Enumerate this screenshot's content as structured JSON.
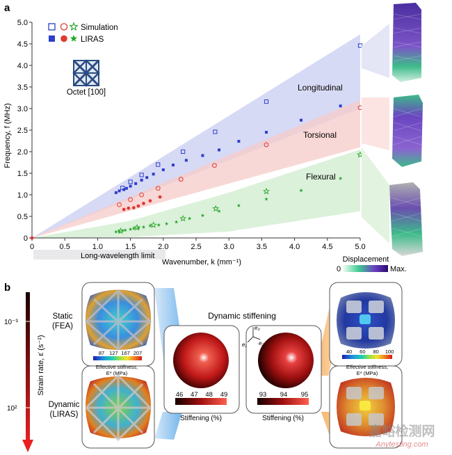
{
  "panel_a": {
    "letter": "a",
    "legend": {
      "sim_label": "Simulation",
      "liras_label": "LIRAS"
    },
    "unit_cell_label": "Octet [100]",
    "mode_labels": [
      "Longitudinal",
      "Torsional",
      "Flexural"
    ],
    "long_wavelength_label": "Long-wavelength limit",
    "displacement": {
      "title": "Displacement",
      "min": "0",
      "max": "Max."
    }
  },
  "chart_data": {
    "type": "scatter",
    "xlabel": "Wavenumber, k (mm⁻¹)",
    "ylabel": "Frequency, f (MHz)",
    "xlim": [
      0,
      5
    ],
    "ylim": [
      0,
      5
    ],
    "xticks": [
      "0",
      "0.5",
      "1.0",
      "1.5",
      "2.0",
      "2.5",
      "3.0",
      "3.5",
      "4.0",
      "4.5",
      "5.0"
    ],
    "yticks": [
      "0",
      "0.5",
      "1.0",
      "1.5",
      "2.0",
      "2.5",
      "3.0",
      "3.5",
      "4.0",
      "4.5",
      "5.0"
    ],
    "series": [
      {
        "name": "Longitudinal simulation",
        "marker": "open-square",
        "color": "#2d3fc9",
        "x": [
          1.38,
          1.5,
          1.67,
          1.92,
          2.3,
          2.79,
          3.57,
          5.0
        ],
        "y": [
          1.16,
          1.3,
          1.46,
          1.7,
          2.0,
          2.46,
          3.16,
          4.46
        ]
      },
      {
        "name": "Longitudinal LIRAS",
        "marker": "filled-square",
        "color": "#2d3fc9",
        "x": [
          1.28,
          1.33,
          1.4,
          1.44,
          1.5,
          1.58,
          1.67,
          1.75,
          1.85,
          2.0,
          2.15,
          2.35,
          2.6,
          2.85,
          3.15,
          3.57,
          4.1,
          4.7
        ],
        "y": [
          1.05,
          1.09,
          1.12,
          1.15,
          1.2,
          1.26,
          1.34,
          1.4,
          1.48,
          1.58,
          1.69,
          1.8,
          1.91,
          2.04,
          2.24,
          2.45,
          2.73,
          3.06
        ]
      },
      {
        "name": "Torsional simulation",
        "marker": "open-circle",
        "color": "#e03a32",
        "x": [
          1.33,
          1.5,
          1.67,
          1.92,
          2.27,
          2.78,
          3.57,
          5.0
        ],
        "y": [
          0.77,
          0.89,
          1.0,
          1.15,
          1.36,
          1.68,
          2.16,
          3.02
        ]
      },
      {
        "name": "Torsional LIRAS",
        "marker": "filled-circle",
        "color": "#e03a32",
        "x": [
          1.4,
          1.47,
          1.55,
          1.62,
          1.7,
          1.8,
          1.95
        ],
        "y": [
          0.66,
          0.69,
          0.7,
          0.74,
          0.8,
          0.86,
          0.95
        ]
      },
      {
        "name": "Flexural simulation",
        "marker": "open-star",
        "color": "#2aa52a",
        "x": [
          1.35,
          1.6,
          1.85,
          2.3,
          2.8,
          3.57,
          5.0
        ],
        "y": [
          0.16,
          0.24,
          0.3,
          0.45,
          0.68,
          1.08,
          1.93
        ]
      },
      {
        "name": "Flexural LIRAS",
        "marker": "filled-star",
        "color": "#2aa52a",
        "x": [
          1.28,
          1.33,
          1.38,
          1.42,
          1.5,
          1.55,
          1.62,
          1.7,
          1.8,
          1.93,
          2.05,
          2.2,
          2.4,
          2.6,
          2.85,
          3.15,
          3.57,
          4.1,
          4.7
        ],
        "y": [
          0.14,
          0.15,
          0.17,
          0.18,
          0.2,
          0.22,
          0.23,
          0.25,
          0.28,
          0.3,
          0.33,
          0.37,
          0.45,
          0.52,
          0.62,
          0.75,
          0.9,
          1.1,
          1.38
        ]
      }
    ],
    "bands": [
      {
        "name": "Longitudinal",
        "color": "#c9cdf2",
        "x": [
          0,
          5.0
        ],
        "upper": [
          0,
          4.72
        ],
        "lower": [
          0,
          3.0
        ]
      },
      {
        "name": "Torsional",
        "color": "#f5cbc8",
        "x": [
          0,
          5.0
        ],
        "upper": [
          0,
          3.2
        ],
        "lower": [
          0,
          2.1
        ]
      },
      {
        "name": "Flexural",
        "color": "#cfeccd",
        "x": [
          0,
          1.5,
          3.0,
          5.0
        ],
        "upper": [
          0,
          0.4,
          1.05,
          2.05
        ],
        "lower": [
          0,
          0.02,
          0.15,
          0.62
        ]
      }
    ]
  },
  "panel_b": {
    "letter": "b",
    "strain_axis_label": "Strain rate, ε̇ (s⁻¹)",
    "strain_tick_top": "10⁻³",
    "strain_tick_bottom": "10²",
    "static_label_1": "Static",
    "static_label_2": "(FEA)",
    "dynamic_label_1": "Dynamic",
    "dynamic_label_2": "(LIRAS)",
    "dynamic_stiffening_title": "Dynamic stiffening",
    "left_colorbar": {
      "ticks": [
        "87",
        "127",
        "167",
        "207"
      ],
      "label_1": "Effective stiffness,",
      "label_2": "E* (MPa)"
    },
    "right_colorbar": {
      "ticks": [
        "40",
        "60",
        "80",
        "100"
      ],
      "label_1": "Effective stiffness,",
      "label_2": "E* (MPa)"
    },
    "stiffening_left": {
      "ticks": [
        "46",
        "47",
        "48",
        "49"
      ],
      "label": "Stiffening (%)"
    },
    "stiffening_right": {
      "ticks": [
        "93",
        "94",
        "95"
      ],
      "label": "Stiffening (%)"
    },
    "axes_labels": [
      "e₃",
      "e₁",
      "e₂"
    ]
  },
  "watermark": {
    "line1": "嘉峪检测网",
    "line2": "Anytesting.com"
  },
  "colors": {
    "blue": "#2d3fc9",
    "red": "#e03a32",
    "green": "#2aa52a"
  }
}
